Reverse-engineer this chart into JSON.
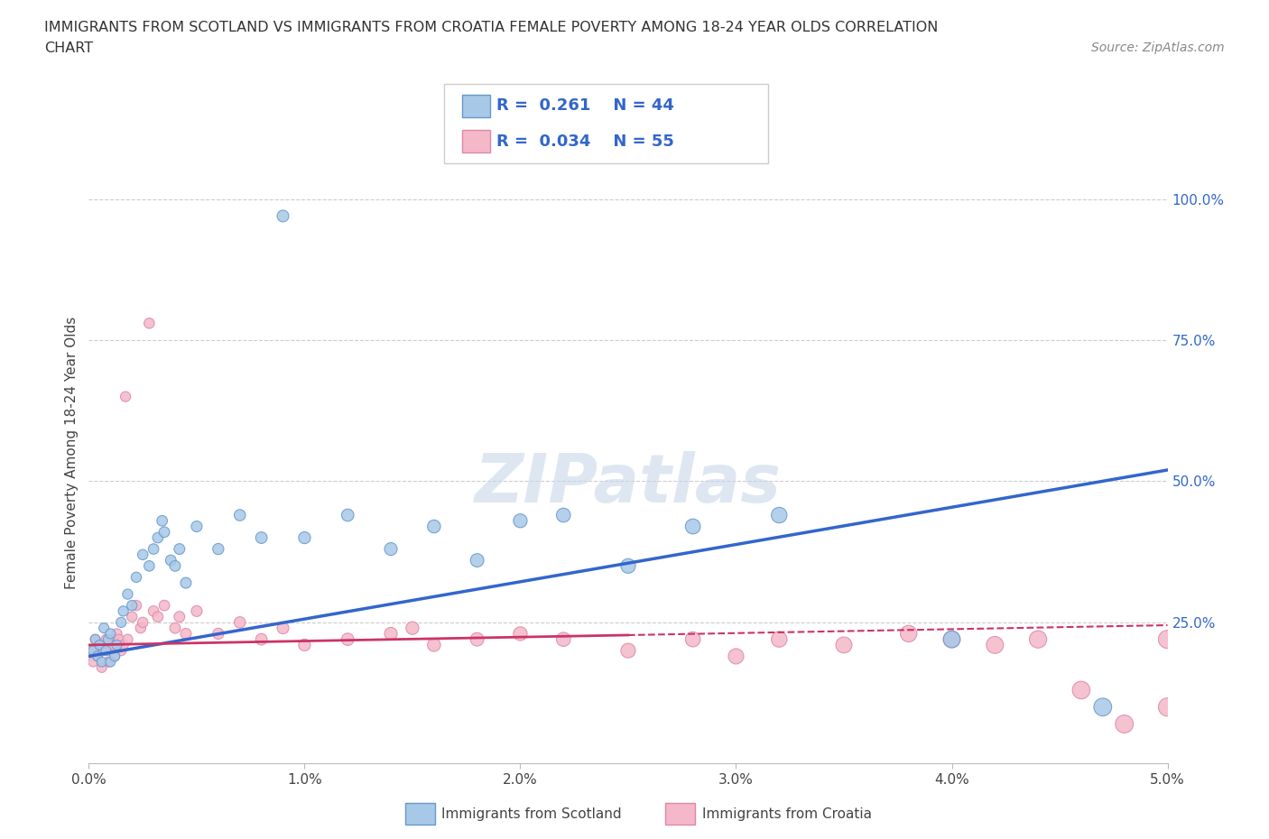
{
  "title_line1": "IMMIGRANTS FROM SCOTLAND VS IMMIGRANTS FROM CROATIA FEMALE POVERTY AMONG 18-24 YEAR OLDS CORRELATION",
  "title_line2": "CHART",
  "source_text": "Source: ZipAtlas.com",
  "ylabel": "Female Poverty Among 18-24 Year Olds",
  "xlim": [
    0.0,
    0.05
  ],
  "ylim": [
    0.0,
    1.1
  ],
  "xticks": [
    0.0,
    0.01,
    0.02,
    0.03,
    0.04,
    0.05
  ],
  "xtick_labels": [
    "0.0%",
    "1.0%",
    "2.0%",
    "3.0%",
    "4.0%",
    "5.0%"
  ],
  "ytick_labels_right": [
    "100.0%",
    "75.0%",
    "50.0%",
    "25.0%"
  ],
  "ytick_vals_right": [
    1.0,
    0.75,
    0.5,
    0.25
  ],
  "scotland_color": "#a8c8e8",
  "croatia_color": "#f4b8c8",
  "scotland_edge": "#6699cc",
  "croatia_edge": "#dd88aa",
  "trend_scotland_color": "#3366cc",
  "trend_croatia_solid_color": "#cc3366",
  "trend_croatia_dash_color": "#cc3366",
  "legend_scotland_R": "0.261",
  "legend_scotland_N": "44",
  "legend_croatia_R": "0.034",
  "legend_croatia_N": "55",
  "legend_label_scotland": "Immigrants from Scotland",
  "legend_label_croatia": "Immigrants from Croatia",
  "watermark": "ZIPatlas",
  "watermark_color": "#c8d8e8",
  "background_color": "#ffffff",
  "grid_color": "#cccccc",
  "trend_sc_x0": 0.0,
  "trend_sc_y0": 0.19,
  "trend_sc_x1": 0.05,
  "trend_sc_y1": 0.52,
  "trend_cr_x0": 0.0,
  "trend_cr_y0": 0.21,
  "trend_cr_x1": 0.05,
  "trend_cr_y1": 0.245,
  "trend_cr_solid_end": 0.025,
  "scotland_x": [
    0.0002,
    0.0003,
    0.0004,
    0.0005,
    0.0006,
    0.0007,
    0.0008,
    0.0009,
    0.001,
    0.001,
    0.0012,
    0.0013,
    0.0015,
    0.0016,
    0.0018,
    0.002,
    0.0022,
    0.0025,
    0.0028,
    0.003,
    0.0032,
    0.0034,
    0.0035,
    0.0038,
    0.004,
    0.0042,
    0.0045,
    0.005,
    0.006,
    0.007,
    0.008,
    0.009,
    0.01,
    0.012,
    0.014,
    0.016,
    0.018,
    0.02,
    0.022,
    0.025,
    0.028,
    0.032,
    0.04,
    0.047
  ],
  "scotland_y": [
    0.2,
    0.22,
    0.19,
    0.21,
    0.18,
    0.24,
    0.2,
    0.22,
    0.18,
    0.23,
    0.19,
    0.21,
    0.25,
    0.27,
    0.3,
    0.28,
    0.33,
    0.37,
    0.35,
    0.38,
    0.4,
    0.43,
    0.41,
    0.36,
    0.35,
    0.38,
    0.32,
    0.42,
    0.38,
    0.44,
    0.4,
    0.97,
    0.4,
    0.44,
    0.38,
    0.42,
    0.36,
    0.43,
    0.44,
    0.35,
    0.42,
    0.44,
    0.22,
    0.1
  ],
  "croatia_x": [
    0.0001,
    0.0002,
    0.0003,
    0.0004,
    0.0005,
    0.0006,
    0.0007,
    0.0008,
    0.0009,
    0.001,
    0.0011,
    0.0012,
    0.0013,
    0.0014,
    0.0015,
    0.0016,
    0.0017,
    0.0018,
    0.002,
    0.0022,
    0.0024,
    0.0025,
    0.0028,
    0.003,
    0.0032,
    0.0035,
    0.004,
    0.0042,
    0.0045,
    0.005,
    0.006,
    0.007,
    0.008,
    0.009,
    0.01,
    0.012,
    0.014,
    0.015,
    0.016,
    0.018,
    0.02,
    0.022,
    0.025,
    0.028,
    0.03,
    0.032,
    0.035,
    0.038,
    0.04,
    0.042,
    0.044,
    0.046,
    0.048,
    0.05,
    0.05
  ],
  "croatia_y": [
    0.2,
    0.18,
    0.22,
    0.19,
    0.21,
    0.17,
    0.2,
    0.22,
    0.18,
    0.2,
    0.21,
    0.19,
    0.23,
    0.22,
    0.2,
    0.21,
    0.65,
    0.22,
    0.26,
    0.28,
    0.24,
    0.25,
    0.78,
    0.27,
    0.26,
    0.28,
    0.24,
    0.26,
    0.23,
    0.27,
    0.23,
    0.25,
    0.22,
    0.24,
    0.21,
    0.22,
    0.23,
    0.24,
    0.21,
    0.22,
    0.23,
    0.22,
    0.2,
    0.22,
    0.19,
    0.22,
    0.21,
    0.23,
    0.22,
    0.21,
    0.22,
    0.13,
    0.07,
    0.22,
    0.1
  ]
}
